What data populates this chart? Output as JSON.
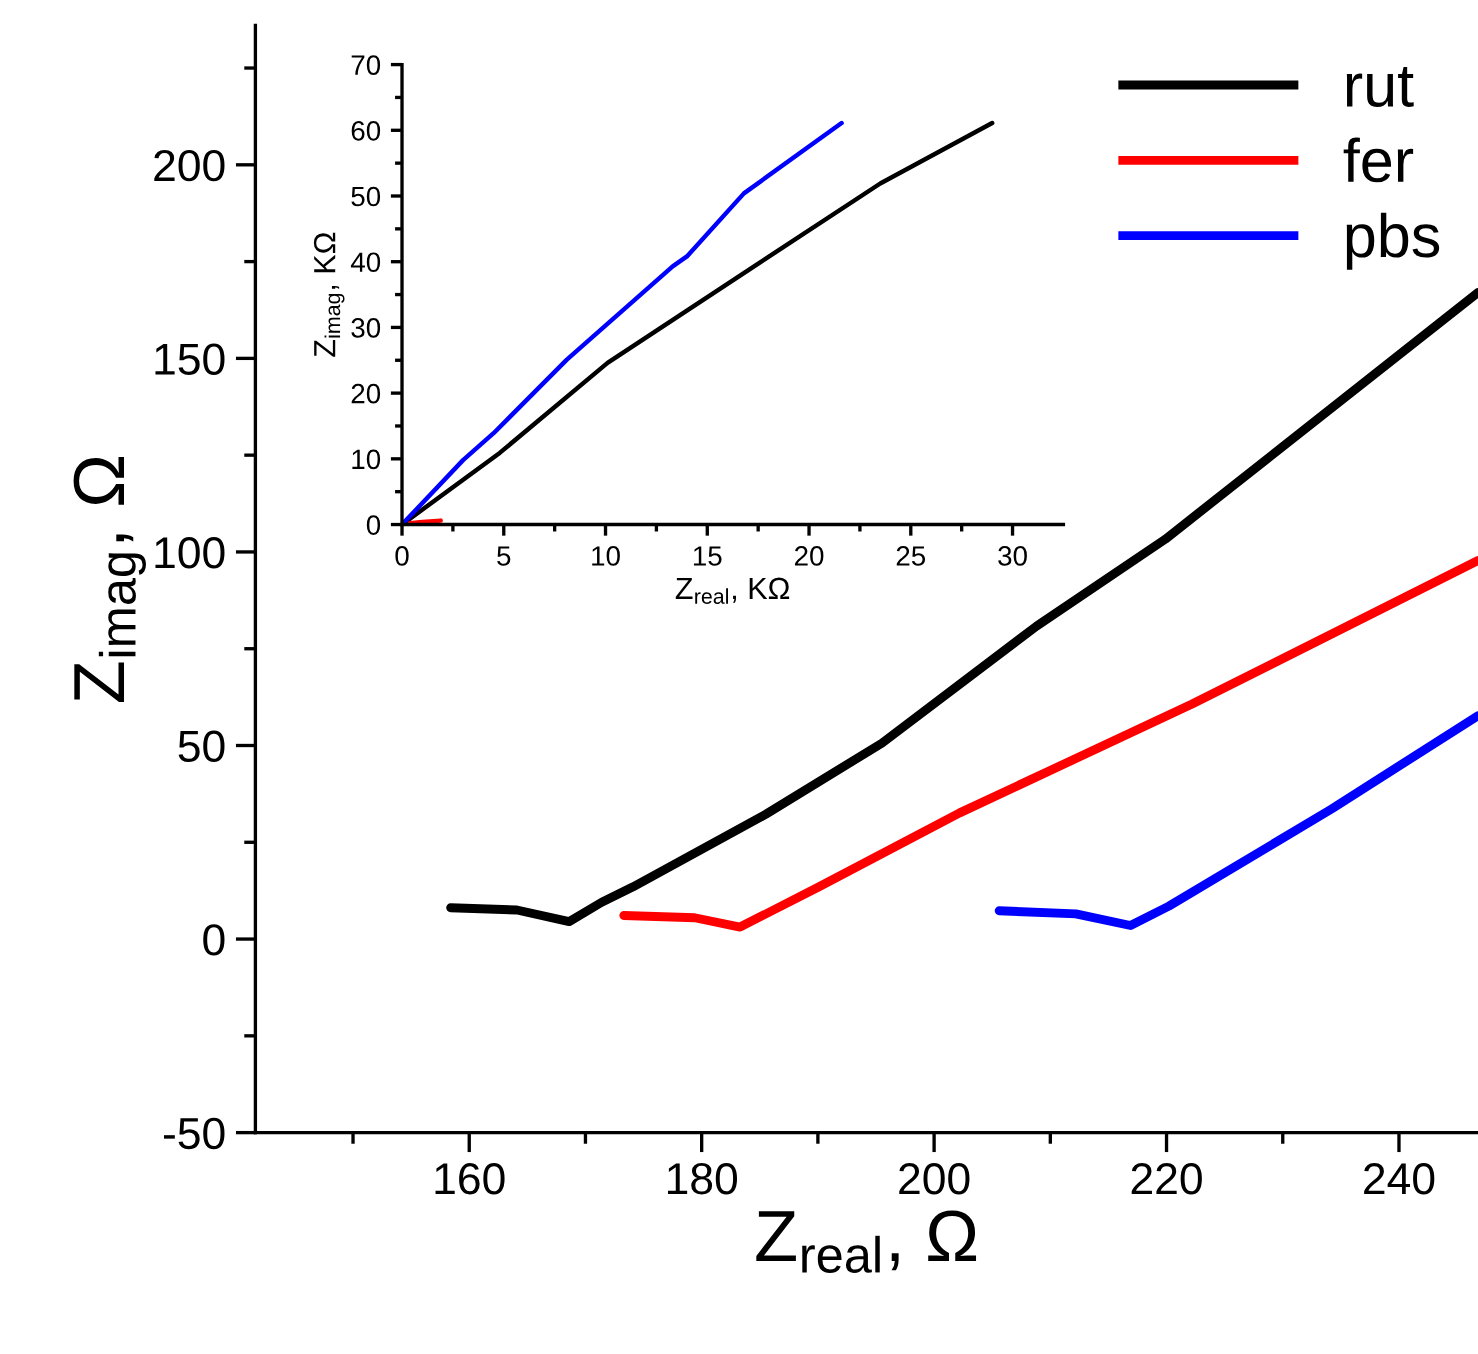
{
  "chart_data": [
    {
      "type": "line",
      "xlabel": "Z$_{real}$, Ω",
      "ylabel": "Z$_{imag}$, Ω",
      "legend": "top right",
      "grid": false,
      "marker": "none",
      "line_style": "solid",
      "xlim": [
        141.6,
        246.8
      ],
      "ylim": [
        -50,
        236
      ],
      "xticks": [
        {
          "value": 150,
          "label": null
        },
        160,
        {
          "value": 170,
          "label": null
        },
        180,
        {
          "value": 190,
          "label": null
        },
        200,
        {
          "value": 210,
          "label": null
        },
        220,
        {
          "value": 230,
          "label": null
        },
        240
      ],
      "yticks": [
        -50,
        {
          "value": -25,
          "label": null
        },
        0,
        {
          "value": 25,
          "label": null
        },
        50,
        {
          "value": 75,
          "label": null
        },
        100,
        {
          "value": 125,
          "label": null
        },
        150,
        {
          "value": 175,
          "label": null
        },
        200,
        {
          "value": 225,
          "label": null
        }
      ],
      "series": [
        {
          "name": "rut",
          "color": "#000000",
          "x": [
            158.4,
            164.1,
            168.6,
            171.4,
            174.1,
            185.5,
            195.5,
            208.8,
            219.9,
            246.8
          ],
          "values": [
            8.1,
            7.5,
            4.5,
            9.5,
            13.5,
            32.2,
            50.6,
            80.8,
            103.3,
            167
          ]
        },
        {
          "name": "fer",
          "color": "#ff0000",
          "x": [
            173.3,
            179.4,
            183.3,
            190.1,
            202.2,
            222.2,
            246.8
          ],
          "values": [
            6.1,
            5.5,
            3.1,
            13.5,
            32.6,
            60.7,
            97.8
          ]
        },
        {
          "name": "pbs",
          "color": "#0000ff",
          "x": [
            205.6,
            212.2,
            216.9,
            220.2,
            234.2,
            246.8
          ],
          "values": [
            7.3,
            6.5,
            3.5,
            8.5,
            33.6,
            57.7
          ]
        }
      ]
    },
    {
      "type": "line",
      "xlabel": "Z$_{real}$, KΩ",
      "ylabel": "Z$_{imag}$, KΩ",
      "grid": false,
      "marker": "none",
      "line_style": "solid",
      "xlim": [
        0,
        32.5
      ],
      "ylim": [
        0,
        70
      ],
      "xticks": [
        0,
        {
          "value": 2.5,
          "label": null
        },
        5,
        {
          "value": 7.5,
          "label": null
        },
        10,
        {
          "value": 12.5,
          "label": null
        },
        15,
        {
          "value": 17.5,
          "label": null
        },
        20,
        {
          "value": 22.5,
          "label": null
        },
        25,
        {
          "value": 27.5,
          "label": null
        },
        30
      ],
      "yticks": [
        0,
        {
          "value": 5,
          "label": null
        },
        10,
        {
          "value": 15,
          "label": null
        },
        20,
        {
          "value": 25,
          "label": null
        },
        30,
        {
          "value": 35,
          "label": null
        },
        40,
        {
          "value": 45,
          "label": null
        },
        50,
        {
          "value": 55,
          "label": null
        },
        60,
        {
          "value": 65,
          "label": null
        },
        70
      ],
      "series": [
        {
          "color": "#000000",
          "x": [
            0,
            4.8,
            10.1,
            17.3,
            23.5,
            29.0
          ],
          "values": [
            0,
            10.9,
            24.6,
            39.3,
            51.9,
            61.1
          ]
        },
        {
          "color": "#ff0000",
          "x": [
            0.4,
            1.0,
            1.9
          ],
          "values": [
            0.2,
            0.4,
            0.6
          ]
        },
        {
          "color": "#0000ff",
          "x": [
            0,
            3.0,
            4.5,
            8.1,
            13.3,
            14.0,
            16.8,
            21.6
          ],
          "values": [
            0,
            9.8,
            13.9,
            25.1,
            39.3,
            40.8,
            50.4,
            61.1
          ]
        }
      ]
    }
  ]
}
